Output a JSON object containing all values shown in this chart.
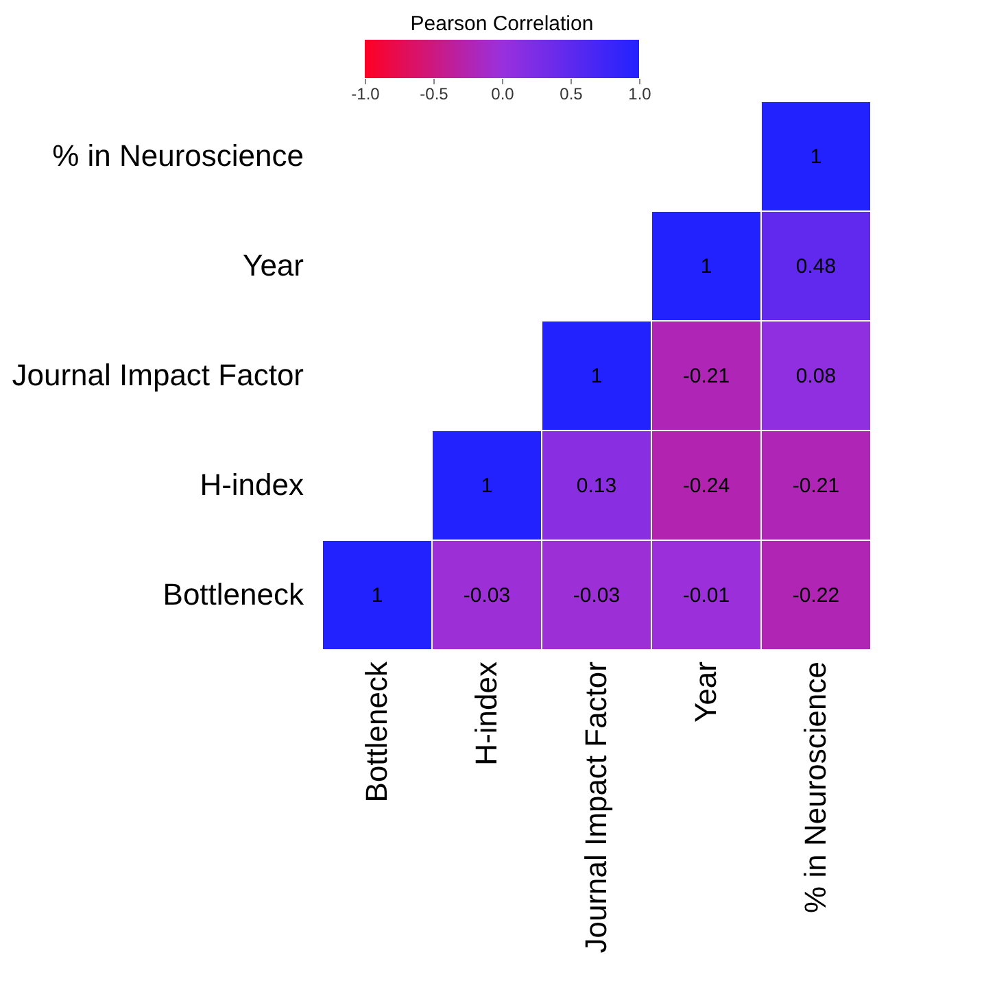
{
  "chart_data": {
    "type": "heatmap",
    "clabel": "Pearson Correlation",
    "categories": [
      "Bottleneck",
      "H-index",
      "Journal Impact Factor",
      "Year",
      "% in Neuroscience"
    ],
    "y_categories": [
      "% in Neuroscience",
      "Year",
      "Journal Impact Factor",
      "H-index",
      "Bottleneck"
    ],
    "cells": [
      [
        null,
        null,
        null,
        null,
        1
      ],
      [
        null,
        null,
        null,
        1,
        0.48
      ],
      [
        null,
        null,
        1,
        -0.21,
        0.08
      ],
      [
        null,
        1,
        0.13,
        -0.24,
        -0.21
      ],
      [
        1,
        -0.03,
        -0.03,
        -0.01,
        -0.22
      ]
    ],
    "data_labels": true,
    "clim": [
      -1,
      1
    ],
    "cticks": [
      {
        "value": -1,
        "label": "-1.0"
      },
      {
        "value": -0.5,
        "label": "-0.5"
      },
      {
        "value": 0,
        "label": "0.0"
      },
      {
        "value": 0.5,
        "label": "0.5"
      },
      {
        "value": 1,
        "label": "1.0"
      }
    ]
  }
}
